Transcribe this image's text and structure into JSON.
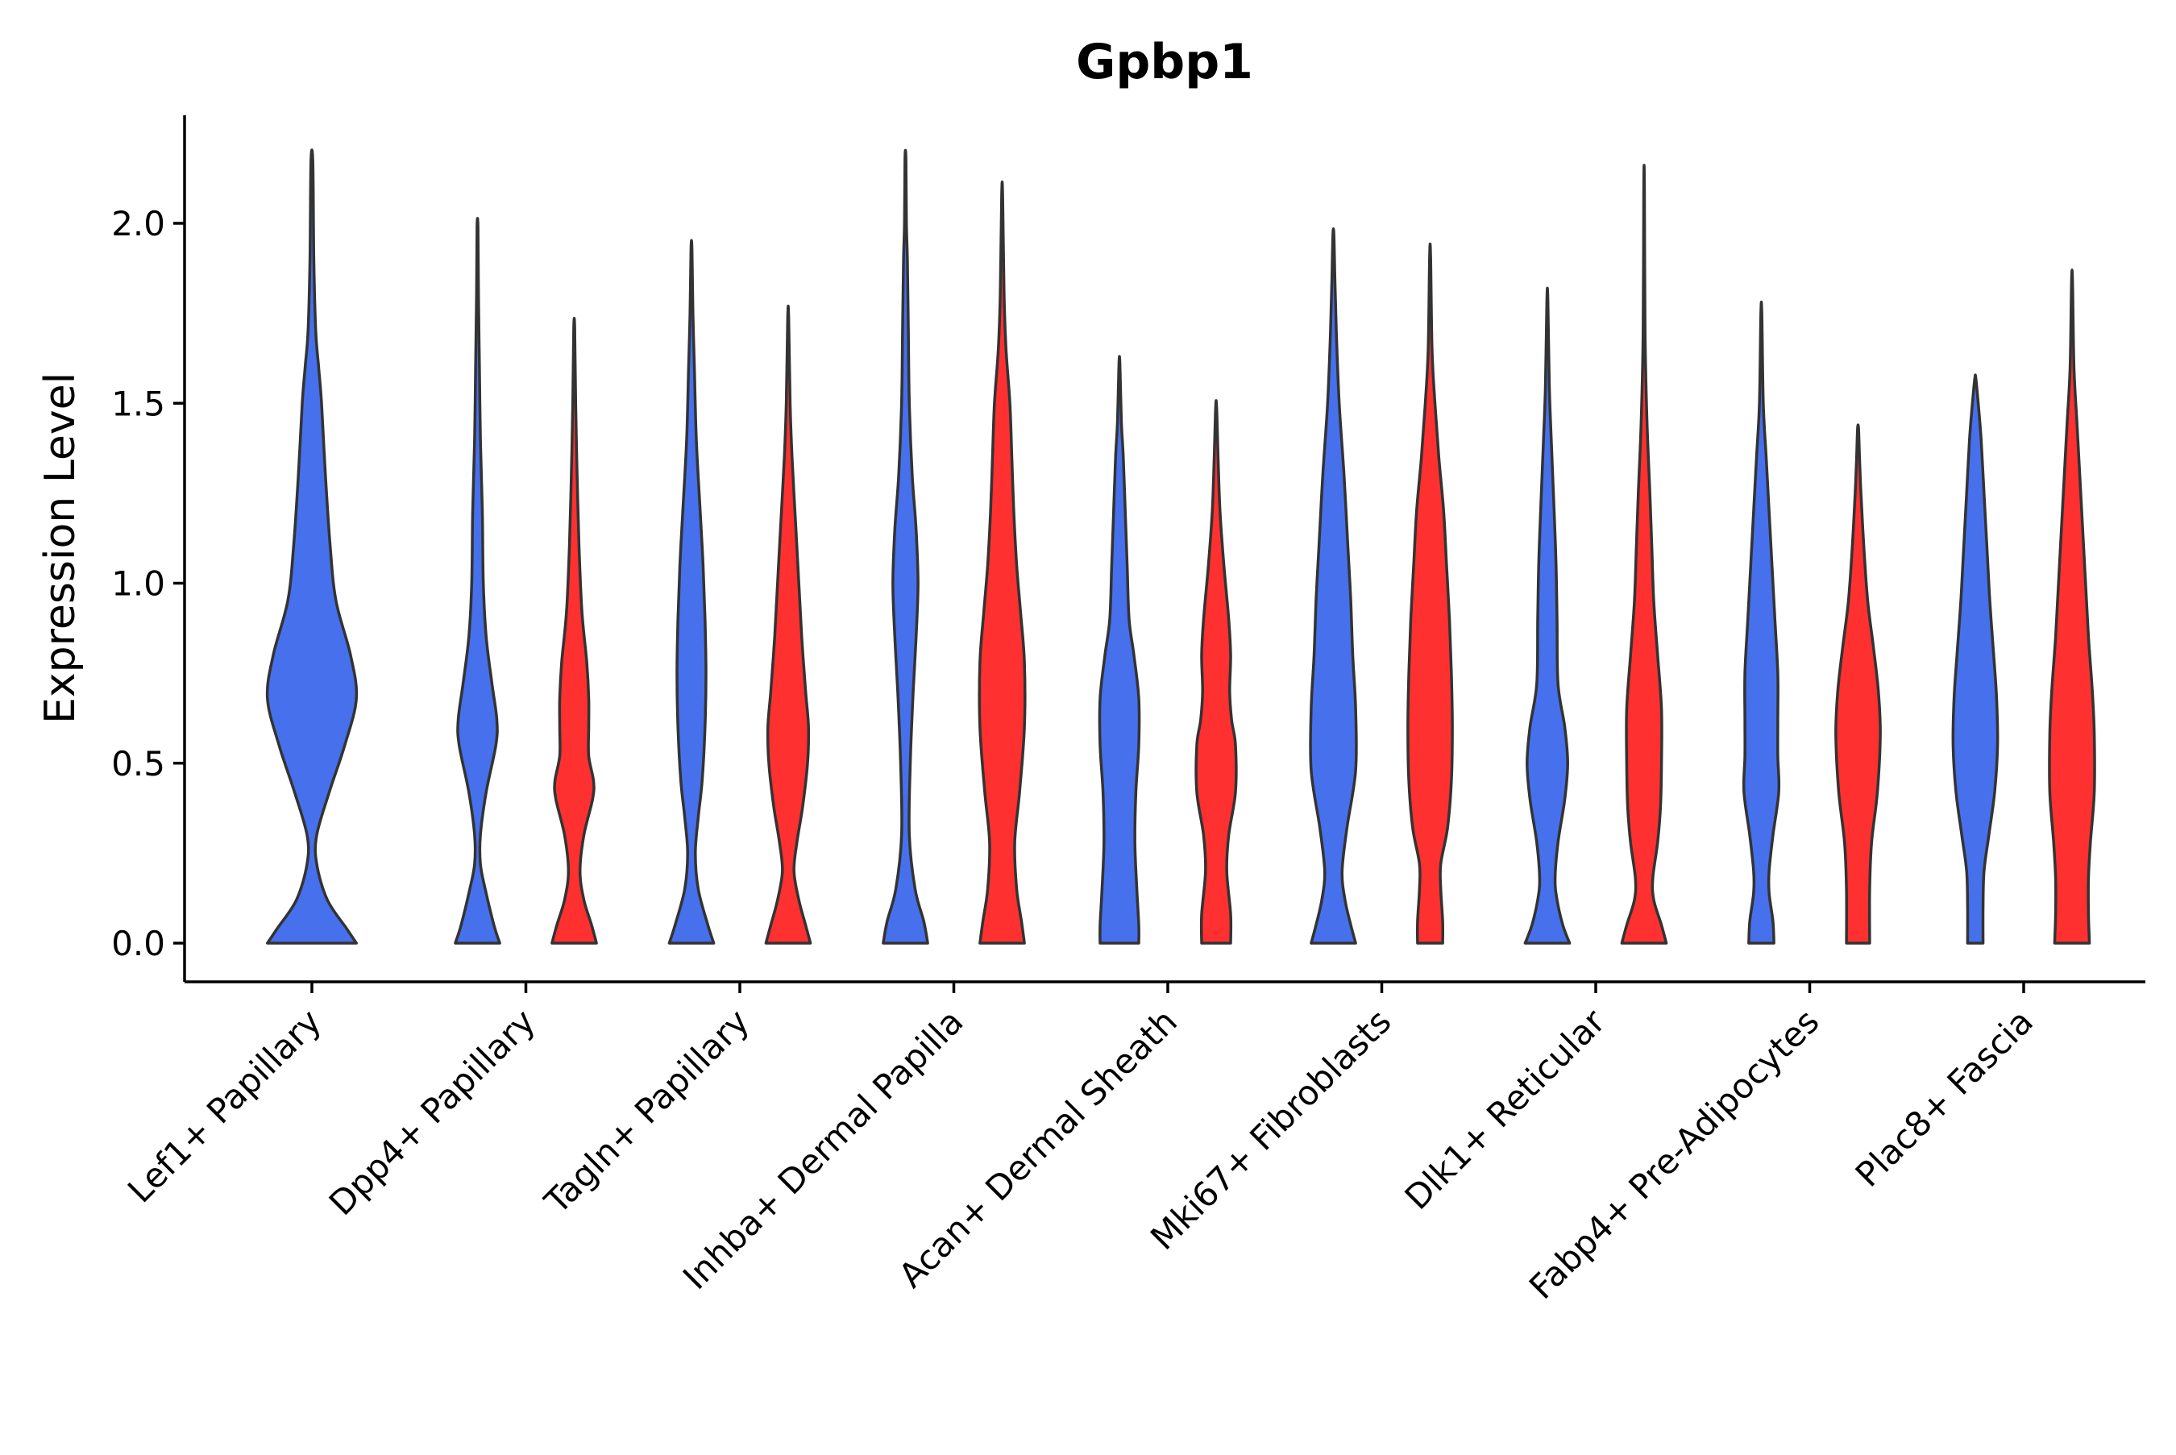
{
  "chart_data": {
    "type": "violin",
    "title": "Gpbp1",
    "xlabel": "",
    "ylabel": "Expression Level",
    "ylim": [
      -0.11,
      2.3
    ],
    "yticks": [
      "0.0",
      "0.5",
      "1.0",
      "1.5",
      "2.0"
    ],
    "ytick_values": [
      0,
      0.5,
      1.0,
      1.5,
      2.0
    ],
    "legend": "none",
    "series_colors": {
      "group1": "#4670EC",
      "group2": "#FF3030"
    },
    "categories": [
      "Lef1+ Papillary",
      "Dpp4+ Papillary",
      "Tagln+ Papillary",
      "Inhba+ Dermal Papilla",
      "Acan+ Dermal Sheath",
      "Mki67+ Fibroblasts",
      "Dlk1+ Reticular",
      "Fabp4+ Pre-Adipocytes",
      "Plac8+ Fascia"
    ],
    "violins": [
      {
        "category": "Lef1+ Papillary",
        "group": "group1",
        "offset": 0,
        "ymax": 2.17,
        "profile": [
          [
            0,
            0.46
          ],
          [
            0.04,
            0.36
          ],
          [
            0.12,
            0.16
          ],
          [
            0.22,
            0.05
          ],
          [
            0.3,
            0.05
          ],
          [
            0.42,
            0.18
          ],
          [
            0.55,
            0.34
          ],
          [
            0.68,
            0.46
          ],
          [
            0.8,
            0.4
          ],
          [
            0.95,
            0.25
          ],
          [
            1.1,
            0.19
          ],
          [
            1.3,
            0.14
          ],
          [
            1.5,
            0.1
          ],
          [
            1.6,
            0.07
          ],
          [
            1.7,
            0.04
          ],
          [
            1.9,
            0.02
          ],
          [
            2.17,
            0.01
          ]
        ]
      },
      {
        "category": "Dpp4+ Papillary",
        "group": "group1",
        "offset": -0.5,
        "ymax": 1.99,
        "profile": [
          [
            0,
            0.23
          ],
          [
            0.05,
            0.17
          ],
          [
            0.15,
            0.08
          ],
          [
            0.22,
            0.03
          ],
          [
            0.3,
            0.03
          ],
          [
            0.42,
            0.09
          ],
          [
            0.55,
            0.19
          ],
          [
            0.62,
            0.2
          ],
          [
            0.72,
            0.15
          ],
          [
            0.85,
            0.09
          ],
          [
            1.0,
            0.06
          ],
          [
            1.2,
            0.05
          ],
          [
            1.4,
            0.03
          ],
          [
            1.6,
            0.02
          ],
          [
            1.8,
            0.01
          ],
          [
            1.99,
            0.005
          ]
        ]
      },
      {
        "category": "Dpp4+ Papillary",
        "group": "group2",
        "offset": 0.5,
        "ymax": 1.71,
        "profile": [
          [
            0,
            0.23
          ],
          [
            0.05,
            0.18
          ],
          [
            0.12,
            0.1
          ],
          [
            0.2,
            0.06
          ],
          [
            0.3,
            0.1
          ],
          [
            0.4,
            0.19
          ],
          [
            0.45,
            0.2
          ],
          [
            0.52,
            0.15
          ],
          [
            0.6,
            0.15
          ],
          [
            0.68,
            0.15
          ],
          [
            0.78,
            0.13
          ],
          [
            0.92,
            0.08
          ],
          [
            1.1,
            0.05
          ],
          [
            1.3,
            0.03
          ],
          [
            1.5,
            0.015
          ],
          [
            1.71,
            0.005
          ]
        ]
      },
      {
        "category": "Tagln+ Papillary",
        "group": "group1",
        "offset": -0.5,
        "ymax": 1.93,
        "profile": [
          [
            0,
            0.23
          ],
          [
            0.05,
            0.17
          ],
          [
            0.15,
            0.07
          ],
          [
            0.25,
            0.04
          ],
          [
            0.35,
            0.07
          ],
          [
            0.45,
            0.11
          ],
          [
            0.6,
            0.14
          ],
          [
            0.75,
            0.15
          ],
          [
            0.9,
            0.14
          ],
          [
            1.05,
            0.12
          ],
          [
            1.2,
            0.09
          ],
          [
            1.4,
            0.05
          ],
          [
            1.6,
            0.03
          ],
          [
            1.75,
            0.015
          ],
          [
            1.93,
            0.005
          ]
        ]
      },
      {
        "category": "Tagln+ Papillary",
        "group": "group2",
        "offset": 0.5,
        "ymax": 1.74,
        "profile": [
          [
            0,
            0.23
          ],
          [
            0.05,
            0.18
          ],
          [
            0.12,
            0.11
          ],
          [
            0.2,
            0.06
          ],
          [
            0.28,
            0.09
          ],
          [
            0.38,
            0.15
          ],
          [
            0.5,
            0.2
          ],
          [
            0.6,
            0.21
          ],
          [
            0.7,
            0.18
          ],
          [
            0.85,
            0.14
          ],
          [
            1.0,
            0.11
          ],
          [
            1.15,
            0.08
          ],
          [
            1.35,
            0.04
          ],
          [
            1.5,
            0.02
          ],
          [
            1.74,
            0.005
          ]
        ]
      },
      {
        "category": "Inhba+ Dermal Papilla",
        "group": "group1",
        "offset": -0.5,
        "ymax": 2.18,
        "profile": [
          [
            0,
            0.23
          ],
          [
            0.06,
            0.19
          ],
          [
            0.15,
            0.1
          ],
          [
            0.3,
            0.04
          ],
          [
            0.5,
            0.05
          ],
          [
            0.7,
            0.08
          ],
          [
            0.85,
            0.11
          ],
          [
            1.0,
            0.13
          ],
          [
            1.15,
            0.11
          ],
          [
            1.3,
            0.07
          ],
          [
            1.5,
            0.04
          ],
          [
            1.7,
            0.03
          ],
          [
            1.9,
            0.02
          ],
          [
            2.0,
            0.01
          ],
          [
            2.18,
            0.005
          ]
        ]
      },
      {
        "category": "Inhba+ Dermal Papilla",
        "group": "group2",
        "offset": 0.5,
        "ymax": 2.08,
        "profile": [
          [
            0,
            0.23
          ],
          [
            0.06,
            0.2
          ],
          [
            0.15,
            0.15
          ],
          [
            0.28,
            0.13
          ],
          [
            0.42,
            0.18
          ],
          [
            0.6,
            0.23
          ],
          [
            0.78,
            0.23
          ],
          [
            0.92,
            0.19
          ],
          [
            1.05,
            0.15
          ],
          [
            1.2,
            0.12
          ],
          [
            1.35,
            0.1
          ],
          [
            1.5,
            0.08
          ],
          [
            1.65,
            0.04
          ],
          [
            1.8,
            0.02
          ],
          [
            2.08,
            0.005
          ]
        ]
      },
      {
        "category": "Acan+ Dermal Sheath",
        "group": "group1",
        "offset": -0.5,
        "ymax": 1.61,
        "profile": [
          [
            0,
            0.2
          ],
          [
            0.05,
            0.2
          ],
          [
            0.15,
            0.18
          ],
          [
            0.28,
            0.16
          ],
          [
            0.42,
            0.17
          ],
          [
            0.55,
            0.2
          ],
          [
            0.68,
            0.2
          ],
          [
            0.8,
            0.15
          ],
          [
            0.9,
            0.1
          ],
          [
            1.05,
            0.08
          ],
          [
            1.2,
            0.06
          ],
          [
            1.35,
            0.04
          ],
          [
            1.45,
            0.02
          ],
          [
            1.61,
            0.005
          ]
        ]
      },
      {
        "category": "Acan+ Dermal Sheath",
        "group": "group2",
        "offset": 0.5,
        "ymax": 1.49,
        "profile": [
          [
            0,
            0.15
          ],
          [
            0.08,
            0.15
          ],
          [
            0.2,
            0.11
          ],
          [
            0.3,
            0.13
          ],
          [
            0.42,
            0.2
          ],
          [
            0.55,
            0.2
          ],
          [
            0.62,
            0.16
          ],
          [
            0.7,
            0.14
          ],
          [
            0.8,
            0.15
          ],
          [
            0.9,
            0.13
          ],
          [
            1.05,
            0.08
          ],
          [
            1.2,
            0.04
          ],
          [
            1.35,
            0.02
          ],
          [
            1.49,
            0.005
          ]
        ]
      },
      {
        "category": "Mki67+ Fibroblasts",
        "group": "group1",
        "offset": -0.5,
        "ymax": 1.97,
        "profile": [
          [
            0,
            0.23
          ],
          [
            0.05,
            0.18
          ],
          [
            0.12,
            0.12
          ],
          [
            0.2,
            0.09
          ],
          [
            0.32,
            0.14
          ],
          [
            0.48,
            0.23
          ],
          [
            0.65,
            0.23
          ],
          [
            0.8,
            0.2
          ],
          [
            0.95,
            0.18
          ],
          [
            1.1,
            0.15
          ],
          [
            1.3,
            0.11
          ],
          [
            1.5,
            0.06
          ],
          [
            1.7,
            0.03
          ],
          [
            1.85,
            0.015
          ],
          [
            1.97,
            0.005
          ]
        ]
      },
      {
        "category": "Mki67+ Fibroblasts",
        "group": "group2",
        "offset": 0.5,
        "ymax": 1.91,
        "profile": [
          [
            0,
            0.13
          ],
          [
            0.06,
            0.13
          ],
          [
            0.15,
            0.11
          ],
          [
            0.22,
            0.11
          ],
          [
            0.32,
            0.18
          ],
          [
            0.45,
            0.22
          ],
          [
            0.6,
            0.23
          ],
          [
            0.75,
            0.22
          ],
          [
            0.9,
            0.2
          ],
          [
            1.05,
            0.17
          ],
          [
            1.2,
            0.14
          ],
          [
            1.35,
            0.09
          ],
          [
            1.5,
            0.05
          ],
          [
            1.65,
            0.02
          ],
          [
            1.91,
            0.005
          ]
        ]
      },
      {
        "category": "Dlk1+ Reticular",
        "group": "group1",
        "offset": -0.5,
        "ymax": 1.79,
        "profile": [
          [
            0,
            0.23
          ],
          [
            0.05,
            0.16
          ],
          [
            0.12,
            0.1
          ],
          [
            0.18,
            0.08
          ],
          [
            0.28,
            0.11
          ],
          [
            0.4,
            0.18
          ],
          [
            0.5,
            0.21
          ],
          [
            0.6,
            0.18
          ],
          [
            0.72,
            0.11
          ],
          [
            0.9,
            0.1
          ],
          [
            1.05,
            0.09
          ],
          [
            1.2,
            0.07
          ],
          [
            1.4,
            0.04
          ],
          [
            1.55,
            0.02
          ],
          [
            1.79,
            0.005
          ]
        ]
      },
      {
        "category": "Dlk1+ Reticular",
        "group": "group2",
        "offset": 0.5,
        "ymax": 2.11,
        "profile": [
          [
            0,
            0.23
          ],
          [
            0.05,
            0.18
          ],
          [
            0.12,
            0.1
          ],
          [
            0.18,
            0.09
          ],
          [
            0.28,
            0.14
          ],
          [
            0.38,
            0.17
          ],
          [
            0.5,
            0.18
          ],
          [
            0.65,
            0.18
          ],
          [
            0.8,
            0.14
          ],
          [
            0.95,
            0.1
          ],
          [
            1.1,
            0.08
          ],
          [
            1.25,
            0.06
          ],
          [
            1.45,
            0.03
          ],
          [
            1.7,
            0.01
          ],
          [
            2.11,
            0.003
          ]
        ]
      },
      {
        "category": "Fabp4+ Pre-Adipocytes",
        "group": "group1",
        "offset": -0.5,
        "ymax": 1.75,
        "profile": [
          [
            0,
            0.13
          ],
          [
            0.06,
            0.12
          ],
          [
            0.14,
            0.08
          ],
          [
            0.2,
            0.08
          ],
          [
            0.3,
            0.12
          ],
          [
            0.42,
            0.18
          ],
          [
            0.52,
            0.17
          ],
          [
            0.62,
            0.17
          ],
          [
            0.75,
            0.17
          ],
          [
            0.9,
            0.14
          ],
          [
            1.05,
            0.11
          ],
          [
            1.2,
            0.08
          ],
          [
            1.35,
            0.05
          ],
          [
            1.5,
            0.02
          ],
          [
            1.75,
            0.005
          ]
        ]
      },
      {
        "category": "Fabp4+ Pre-Adipocytes",
        "group": "group2",
        "offset": 0.5,
        "ymax": 1.43,
        "profile": [
          [
            0,
            0.12
          ],
          [
            0.15,
            0.12
          ],
          [
            0.28,
            0.14
          ],
          [
            0.42,
            0.2
          ],
          [
            0.58,
            0.23
          ],
          [
            0.7,
            0.21
          ],
          [
            0.82,
            0.16
          ],
          [
            0.95,
            0.1
          ],
          [
            1.1,
            0.06
          ],
          [
            1.25,
            0.03
          ],
          [
            1.35,
            0.015
          ],
          [
            1.43,
            0.005
          ]
        ]
      },
      {
        "category": "Plac8+ Fascia",
        "group": "group1",
        "offset": -0.5,
        "ymax": 1.57,
        "profile": [
          [
            0,
            0.08
          ],
          [
            0.1,
            0.08
          ],
          [
            0.2,
            0.09
          ],
          [
            0.3,
            0.14
          ],
          [
            0.42,
            0.2
          ],
          [
            0.55,
            0.23
          ],
          [
            0.68,
            0.22
          ],
          [
            0.8,
            0.19
          ],
          [
            0.95,
            0.15
          ],
          [
            1.1,
            0.12
          ],
          [
            1.25,
            0.09
          ],
          [
            1.4,
            0.06
          ],
          [
            1.5,
            0.03
          ],
          [
            1.57,
            0.005
          ]
        ]
      },
      {
        "category": "Plac8+ Fascia",
        "group": "group2",
        "offset": 0.5,
        "ymax": 1.84,
        "profile": [
          [
            0,
            0.18
          ],
          [
            0.08,
            0.17
          ],
          [
            0.18,
            0.17
          ],
          [
            0.28,
            0.19
          ],
          [
            0.42,
            0.23
          ],
          [
            0.58,
            0.23
          ],
          [
            0.7,
            0.21
          ],
          [
            0.85,
            0.17
          ],
          [
            1.0,
            0.14
          ],
          [
            1.15,
            0.11
          ],
          [
            1.3,
            0.08
          ],
          [
            1.45,
            0.05
          ],
          [
            1.6,
            0.02
          ],
          [
            1.84,
            0.005
          ]
        ]
      }
    ]
  }
}
